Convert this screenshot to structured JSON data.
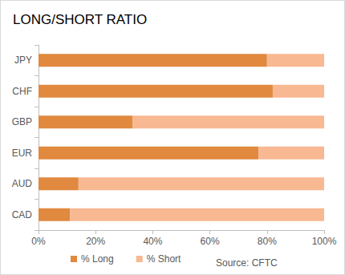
{
  "chart_data": {
    "type": "bar",
    "title": "LONG/SHORT RATIO",
    "orientation": "horizontal",
    "stacked": true,
    "grid": false,
    "legend": "bottom",
    "annotation": "Source: CFTC",
    "categories": [
      "JPY",
      "CHF",
      "GBP",
      "EUR",
      "AUD",
      "CAD"
    ],
    "series": [
      {
        "name": "% Long",
        "color": "#e0893f",
        "values": [
          80,
          82,
          33,
          77,
          14,
          11
        ]
      },
      {
        "name": "% Short",
        "color": "#f8b892",
        "values": [
          20,
          18,
          67,
          23,
          86,
          89
        ]
      }
    ],
    "xlim": [
      0,
      100
    ],
    "xticks": [
      {
        "value": 0,
        "label": "0%"
      },
      {
        "value": 20,
        "label": "20%"
      },
      {
        "value": 40,
        "label": "40%"
      },
      {
        "value": 60,
        "label": "60%"
      },
      {
        "value": 80,
        "label": "80%"
      },
      {
        "value": 100,
        "label": "100%"
      }
    ]
  }
}
